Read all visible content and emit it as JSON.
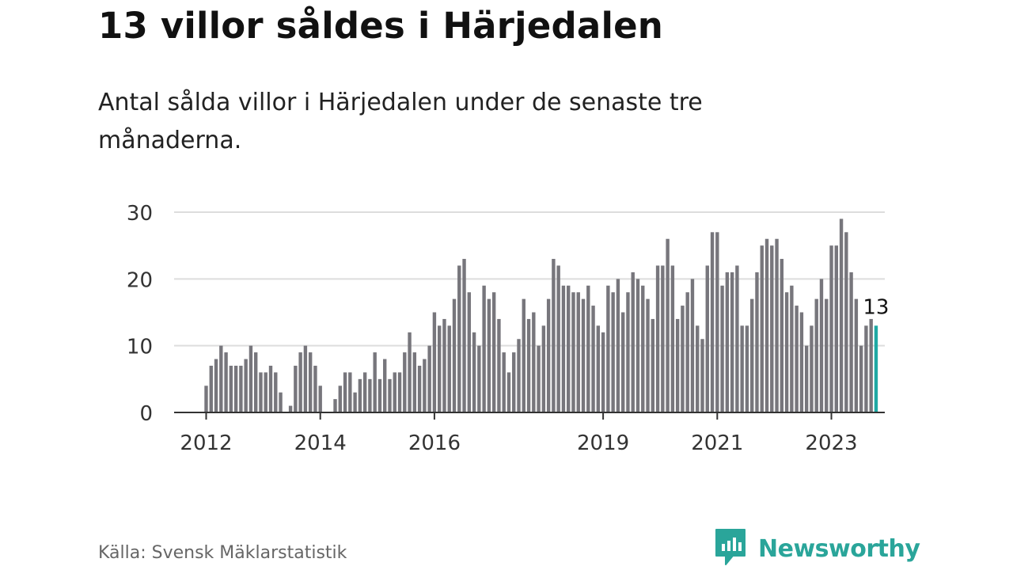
{
  "header": {
    "title": "13 villor såldes i Härjedalen",
    "subtitle": "Antal sålda villor i Härjedalen under de senaste tre månaderna."
  },
  "footer": {
    "source": "Källa: Svensk Mäklarstatistik",
    "brand": "Newsworthy"
  },
  "colors": {
    "bar": "#77767c",
    "highlight": "#1fa9a4",
    "grid": "#dddddd",
    "axis": "#333333",
    "brand": "#2aa59a"
  },
  "icons": {
    "logo": "newsworthy-logo-icon"
  },
  "chart_data": {
    "type": "bar",
    "ylim": [
      0,
      30
    ],
    "yticks": [
      0,
      10,
      20,
      30
    ],
    "grid": true,
    "xticks": [
      "2012",
      "2014",
      "2016",
      "2019",
      "2021",
      "2023"
    ],
    "highlight_label": "13",
    "values": [
      4,
      7,
      8,
      10,
      9,
      7,
      7,
      7,
      8,
      10,
      9,
      6,
      6,
      7,
      6,
      3,
      0,
      1,
      7,
      9,
      10,
      9,
      7,
      4,
      0,
      0,
      2,
      4,
      6,
      6,
      3,
      5,
      6,
      5,
      9,
      5,
      8,
      5,
      6,
      6,
      9,
      12,
      9,
      7,
      8,
      10,
      15,
      13,
      14,
      13,
      17,
      22,
      23,
      18,
      12,
      10,
      19,
      17,
      18,
      14,
      9,
      6,
      9,
      11,
      17,
      14,
      15,
      10,
      13,
      17,
      23,
      22,
      19,
      19,
      18,
      18,
      17,
      19,
      16,
      13,
      12,
      19,
      18,
      20,
      15,
      18,
      21,
      20,
      19,
      17,
      14,
      22,
      22,
      26,
      22,
      14,
      16,
      18,
      20,
      13,
      11,
      22,
      27,
      27,
      19,
      21,
      21,
      22,
      13,
      13,
      17,
      21,
      25,
      26,
      25,
      26,
      23,
      18,
      19,
      16,
      15,
      10,
      13,
      17,
      20,
      17,
      25,
      25,
      29,
      27,
      21,
      17,
      10,
      13,
      14,
      13
    ]
  }
}
